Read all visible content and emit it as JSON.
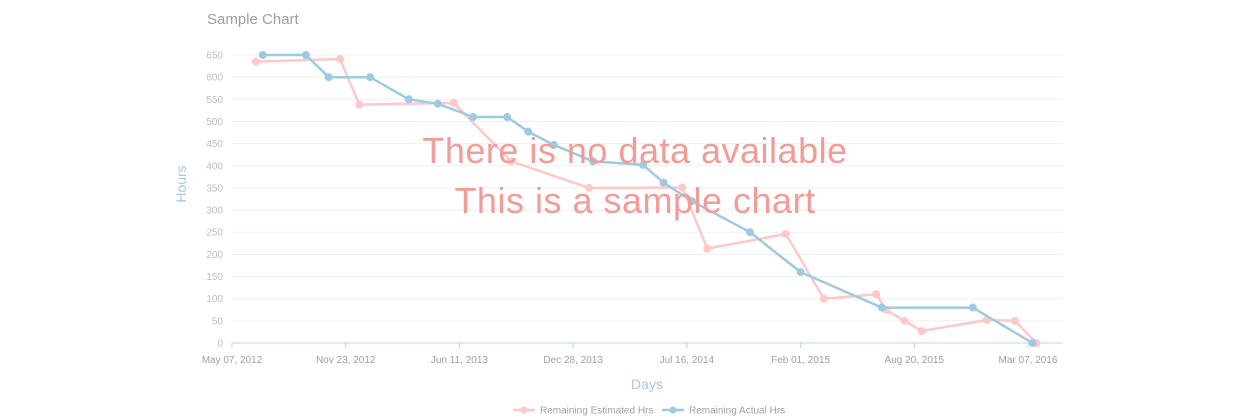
{
  "chart_data": {
    "type": "line",
    "title": "Sample Chart",
    "xlabel": "Days",
    "ylabel": "Hours",
    "ylim": [
      0,
      650
    ],
    "y_ticks": [
      0,
      50,
      100,
      150,
      200,
      250,
      300,
      350,
      400,
      450,
      500,
      550,
      600,
      650
    ],
    "x_tick_labels": [
      "May 07, 2012",
      "Nov 23, 2012",
      "Jun 11, 2013",
      "Dec 28, 2013",
      "Jul 16, 2014",
      "Feb 01, 2015",
      "Aug 20, 2015",
      "Mar 07, 2016"
    ],
    "x_tick_dates": [
      "2012-05-07",
      "2012-11-23",
      "2013-06-11",
      "2013-12-28",
      "2014-07-16",
      "2015-02-01",
      "2015-08-20",
      "2016-03-07"
    ],
    "xlim": [
      "2012-05-07",
      "2016-03-07"
    ],
    "grid": true,
    "legend_position": "bottom",
    "series": [
      {
        "name": "Remaining Estimated Hrs",
        "color": "#ffc8c8",
        "points": [
          [
            "2012-06-18",
            635
          ],
          [
            "2012-11-13",
            641
          ],
          [
            "2012-12-17",
            538
          ],
          [
            "2013-06-01",
            542
          ],
          [
            "2013-09-10",
            410
          ],
          [
            "2014-01-25",
            350
          ],
          [
            "2014-07-08",
            351
          ],
          [
            "2014-08-21",
            213
          ],
          [
            "2015-01-06",
            246
          ],
          [
            "2015-03-14",
            100
          ],
          [
            "2015-06-14",
            110
          ],
          [
            "2015-07-01",
            75
          ],
          [
            "2015-08-03",
            50
          ],
          [
            "2015-09-02",
            27
          ],
          [
            "2015-12-25",
            52
          ],
          [
            "2016-02-13",
            50
          ],
          [
            "2016-03-22",
            0
          ]
        ]
      },
      {
        "name": "Remaining Actual Hrs",
        "color": "#9ecae1",
        "points": [
          [
            "2012-06-30",
            650
          ],
          [
            "2012-09-14",
            650
          ],
          [
            "2012-10-24",
            600
          ],
          [
            "2013-01-05",
            600
          ],
          [
            "2013-03-14",
            550
          ],
          [
            "2013-05-04",
            540
          ],
          [
            "2013-07-05",
            510
          ],
          [
            "2013-09-03",
            510
          ],
          [
            "2013-10-10",
            477
          ],
          [
            "2013-11-24",
            447
          ],
          [
            "2014-02-01",
            410
          ],
          [
            "2014-04-30",
            402
          ],
          [
            "2014-06-05",
            362
          ],
          [
            "2014-07-25",
            320
          ],
          [
            "2014-11-04",
            250
          ],
          [
            "2015-02-01",
            160
          ],
          [
            "2015-06-24",
            80
          ],
          [
            "2015-12-01",
            80
          ],
          [
            "2016-03-15",
            0
          ]
        ]
      }
    ]
  },
  "overlay": {
    "line1": "There is no data available",
    "line2": "This is a sample chart"
  }
}
